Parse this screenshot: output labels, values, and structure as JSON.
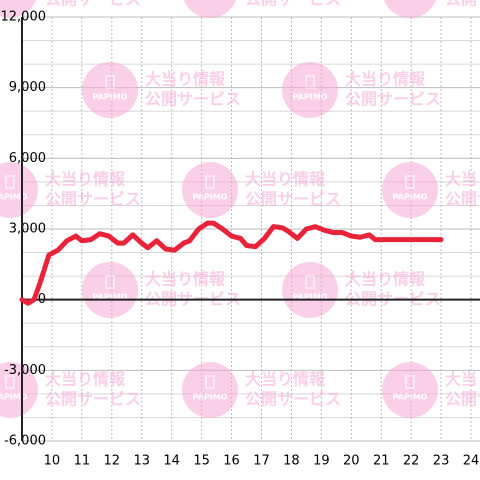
{
  "chart_data": {
    "type": "line",
    "x": [
      9.0,
      9.2,
      9.4,
      9.6,
      9.9,
      10.2,
      10.5,
      10.8,
      11.0,
      11.3,
      11.6,
      11.9,
      12.2,
      12.4,
      12.7,
      13.0,
      13.2,
      13.5,
      13.8,
      14.1,
      14.4,
      14.6,
      14.9,
      15.2,
      15.4,
      15.7,
      16.0,
      16.3,
      16.5,
      16.8,
      17.1,
      17.4,
      17.7,
      17.9,
      18.2,
      18.5,
      18.8,
      19.1,
      19.4,
      19.7,
      20.0,
      20.3,
      20.6,
      20.8,
      21.5,
      23.0
    ],
    "series": [
      {
        "color": "#e8233a",
        "values": [
          0,
          -150,
          0,
          700,
          1900,
          2100,
          2500,
          2700,
          2500,
          2550,
          2800,
          2700,
          2400,
          2400,
          2750,
          2400,
          2200,
          2500,
          2150,
          2100,
          2400,
          2500,
          3000,
          3250,
          3250,
          3000,
          2700,
          2600,
          2300,
          2250,
          2600,
          3100,
          3050,
          2900,
          2600,
          3000,
          3100,
          2950,
          2850,
          2850,
          2700,
          2650,
          2750,
          2550,
          2550,
          2550
        ]
      }
    ],
    "xlim": [
      9,
      24.3
    ],
    "xticks": [
      10,
      11,
      12,
      13,
      14,
      15,
      16,
      17,
      18,
      19,
      20,
      21,
      22,
      23,
      24
    ],
    "ylim": [
      -6000,
      12000
    ],
    "yticks": [
      {
        "value": -6000,
        "label": "-6,000"
      },
      {
        "value": -3000,
        "label": "-3,000"
      },
      0,
      {
        "value": 3000,
        "label": "3,000"
      },
      {
        "value": 6000,
        "label": "6,000"
      },
      {
        "value": 9000,
        "label": "9,000"
      },
      {
        "value": 12000,
        "label": "12,000"
      }
    ],
    "y_minor_ticks": [
      -5000,
      -4000,
      -2000,
      -1000,
      1000,
      2000,
      4000,
      5000,
      7000,
      8000,
      10000,
      11000
    ],
    "grid": true
  },
  "watermark": {
    "logo": "PAPIMO",
    "line1": "大当り情報",
    "line2": "公開サービス"
  }
}
